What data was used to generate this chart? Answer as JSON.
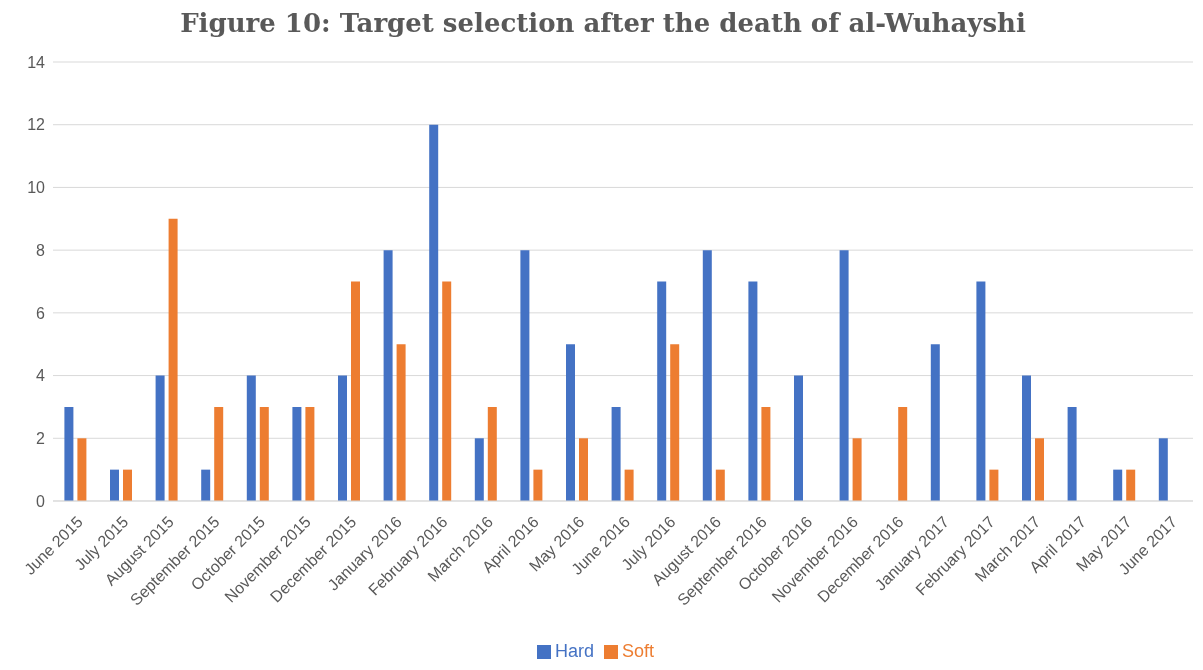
{
  "chart_data": {
    "type": "bar",
    "title": "Figure 10: Target selection after the death of al-Wuhayshi",
    "categories": [
      "June 2015",
      "July 2015",
      "August 2015",
      "September 2015",
      "October 2015",
      "November 2015",
      "December 2015",
      "January 2016",
      "February 2016",
      "March 2016",
      "April 2016",
      "May 2016",
      "June 2016",
      "July 2016",
      "August 2016",
      "September 2016",
      "October 2016",
      "November 2016",
      "December 2016",
      "January 2017",
      "February 2017",
      "March 2017",
      "April 2017",
      "May 2017",
      "June 2017"
    ],
    "series": [
      {
        "name": "Hard",
        "color": "#4472c4",
        "values": [
          3,
          1,
          4,
          1,
          4,
          3,
          4,
          8,
          12,
          2,
          8,
          5,
          3,
          7,
          8,
          7,
          4,
          8,
          0,
          5,
          7,
          4,
          3,
          1,
          2
        ]
      },
      {
        "name": "Soft",
        "color": "#ed7d31",
        "values": [
          2,
          1,
          9,
          3,
          3,
          3,
          7,
          5,
          7,
          3,
          1,
          2,
          1,
          5,
          1,
          3,
          0,
          2,
          3,
          0,
          1,
          2,
          0,
          1,
          0
        ]
      }
    ],
    "ylim": [
      0,
      14
    ],
    "yticks": [
      0,
      2,
      4,
      6,
      8,
      10,
      12,
      14
    ],
    "grid": "y",
    "legend": "bottom"
  }
}
